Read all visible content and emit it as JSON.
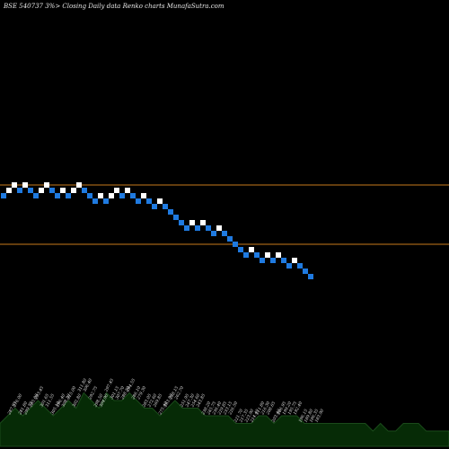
{
  "header": {
    "title": "BSE 540737 3%>  Closing Daily data  Renko  charts MunafaSutra.com"
  },
  "colors": {
    "up": "#ffffff",
    "down": "#1f7ae0",
    "line": "#c87a1c",
    "volume_fill": "#062b06",
    "volume_edge": "#1a4a1a",
    "label": "#e0e0e0",
    "background": "#000000"
  },
  "chart_data": {
    "type": "renko",
    "title": "BSE 540737 3%>  Closing Daily data  Renko  charts MunafaSutra.com",
    "bricks": [
      {
        "x": 1,
        "level": 0,
        "dir": "down"
      },
      {
        "x": 2,
        "level": 1,
        "dir": "up"
      },
      {
        "x": 3,
        "level": 2,
        "dir": "up"
      },
      {
        "x": 4,
        "level": 1,
        "dir": "down"
      },
      {
        "x": 5,
        "level": 2,
        "dir": "up"
      },
      {
        "x": 6,
        "level": 1,
        "dir": "down"
      },
      {
        "x": 7,
        "level": 0,
        "dir": "down"
      },
      {
        "x": 8,
        "level": 1,
        "dir": "up"
      },
      {
        "x": 9,
        "level": 2,
        "dir": "up"
      },
      {
        "x": 10,
        "level": 1,
        "dir": "down"
      },
      {
        "x": 11,
        "level": 0,
        "dir": "down"
      },
      {
        "x": 12,
        "level": 1,
        "dir": "up"
      },
      {
        "x": 13,
        "level": 0,
        "dir": "down"
      },
      {
        "x": 14,
        "level": 1,
        "dir": "up"
      },
      {
        "x": 15,
        "level": 2,
        "dir": "up"
      },
      {
        "x": 16,
        "level": 1,
        "dir": "down"
      },
      {
        "x": 17,
        "level": 0,
        "dir": "down"
      },
      {
        "x": 18,
        "level": -1,
        "dir": "down"
      },
      {
        "x": 19,
        "level": 0,
        "dir": "up"
      },
      {
        "x": 20,
        "level": -1,
        "dir": "down"
      },
      {
        "x": 21,
        "level": 0,
        "dir": "up"
      },
      {
        "x": 22,
        "level": 1,
        "dir": "up"
      },
      {
        "x": 23,
        "level": 0,
        "dir": "down"
      },
      {
        "x": 24,
        "level": 1,
        "dir": "up"
      },
      {
        "x": 25,
        "level": 0,
        "dir": "down"
      },
      {
        "x": 26,
        "level": -1,
        "dir": "down"
      },
      {
        "x": 27,
        "level": 0,
        "dir": "up"
      },
      {
        "x": 28,
        "level": -1,
        "dir": "down"
      },
      {
        "x": 29,
        "level": -2,
        "dir": "down"
      },
      {
        "x": 30,
        "level": -1,
        "dir": "up"
      },
      {
        "x": 31,
        "level": -2,
        "dir": "down"
      },
      {
        "x": 32,
        "level": -3,
        "dir": "down"
      },
      {
        "x": 33,
        "level": -4,
        "dir": "down"
      },
      {
        "x": 34,
        "level": -5,
        "dir": "down"
      },
      {
        "x": 35,
        "level": -6,
        "dir": "down"
      },
      {
        "x": 36,
        "level": -5,
        "dir": "up"
      },
      {
        "x": 37,
        "level": -6,
        "dir": "down"
      },
      {
        "x": 38,
        "level": -5,
        "dir": "up"
      },
      {
        "x": 39,
        "level": -6,
        "dir": "down"
      },
      {
        "x": 40,
        "level": -7,
        "dir": "down"
      },
      {
        "x": 41,
        "level": -6,
        "dir": "up"
      },
      {
        "x": 42,
        "level": -7,
        "dir": "down"
      },
      {
        "x": 43,
        "level": -8,
        "dir": "down"
      },
      {
        "x": 44,
        "level": -9,
        "dir": "down"
      },
      {
        "x": 45,
        "level": -10,
        "dir": "down"
      },
      {
        "x": 46,
        "level": -11,
        "dir": "down"
      },
      {
        "x": 47,
        "level": -10,
        "dir": "up"
      },
      {
        "x": 48,
        "level": -11,
        "dir": "down"
      },
      {
        "x": 49,
        "level": -12,
        "dir": "down"
      },
      {
        "x": 50,
        "level": -11,
        "dir": "up"
      },
      {
        "x": 51,
        "level": -12,
        "dir": "down"
      },
      {
        "x": 52,
        "level": -11,
        "dir": "up"
      },
      {
        "x": 53,
        "level": -12,
        "dir": "down"
      },
      {
        "x": 54,
        "level": -13,
        "dir": "down"
      },
      {
        "x": 55,
        "level": -12,
        "dir": "up"
      },
      {
        "x": 56,
        "level": -13,
        "dir": "down"
      },
      {
        "x": 57,
        "level": -14,
        "dir": "down"
      },
      {
        "x": 58,
        "level": -15,
        "dir": "down"
      }
    ],
    "reference_levels": [
      1.5,
      -9.5
    ],
    "volume": [
      3,
      4,
      5,
      4,
      5,
      6,
      5,
      4,
      5,
      6,
      5,
      7,
      6,
      5,
      7,
      6,
      6,
      7,
      6,
      5,
      5,
      4,
      5,
      6,
      5,
      5,
      5,
      4,
      4,
      4,
      4,
      3,
      3,
      3,
      4,
      4,
      3,
      4,
      4,
      4,
      3,
      3,
      3,
      3,
      3,
      3,
      3,
      3,
      3,
      2,
      3,
      2,
      2,
      3,
      3,
      3,
      2,
      2,
      2,
      2
    ],
    "volume_labels": [
      "",
      "287.95",
      "276.00",
      "281.80",
      "299.75",
      "285.00",
      "293.45",
      "301.65",
      "311.55",
      "305.10",
      "296.40",
      "308.20",
      "315.00",
      "302.80",
      "311.80",
      "306.40",
      "292.75",
      "298.50",
      "304.90",
      "297.45",
      "301.15",
      "307.70",
      "288.20",
      "294.55",
      "286.10",
      "279.30",
      "283.05",
      "272.60",
      "269.85",
      "275.40",
      "263.90",
      "258.15",
      "262.70",
      "251.95",
      "247.30",
      "254.60",
      "243.85",
      "238.20",
      "245.75",
      "236.40",
      "229.85",
      "233.15",
      "226.50",
      "221.70",
      "217.35",
      "223.90",
      "214.45",
      "211.80",
      "216.30",
      "208.65",
      "203.40",
      "206.95",
      "199.20",
      "195.75",
      "192.40",
      "196.15",
      "189.80",
      "186.35",
      "183.90"
    ]
  }
}
